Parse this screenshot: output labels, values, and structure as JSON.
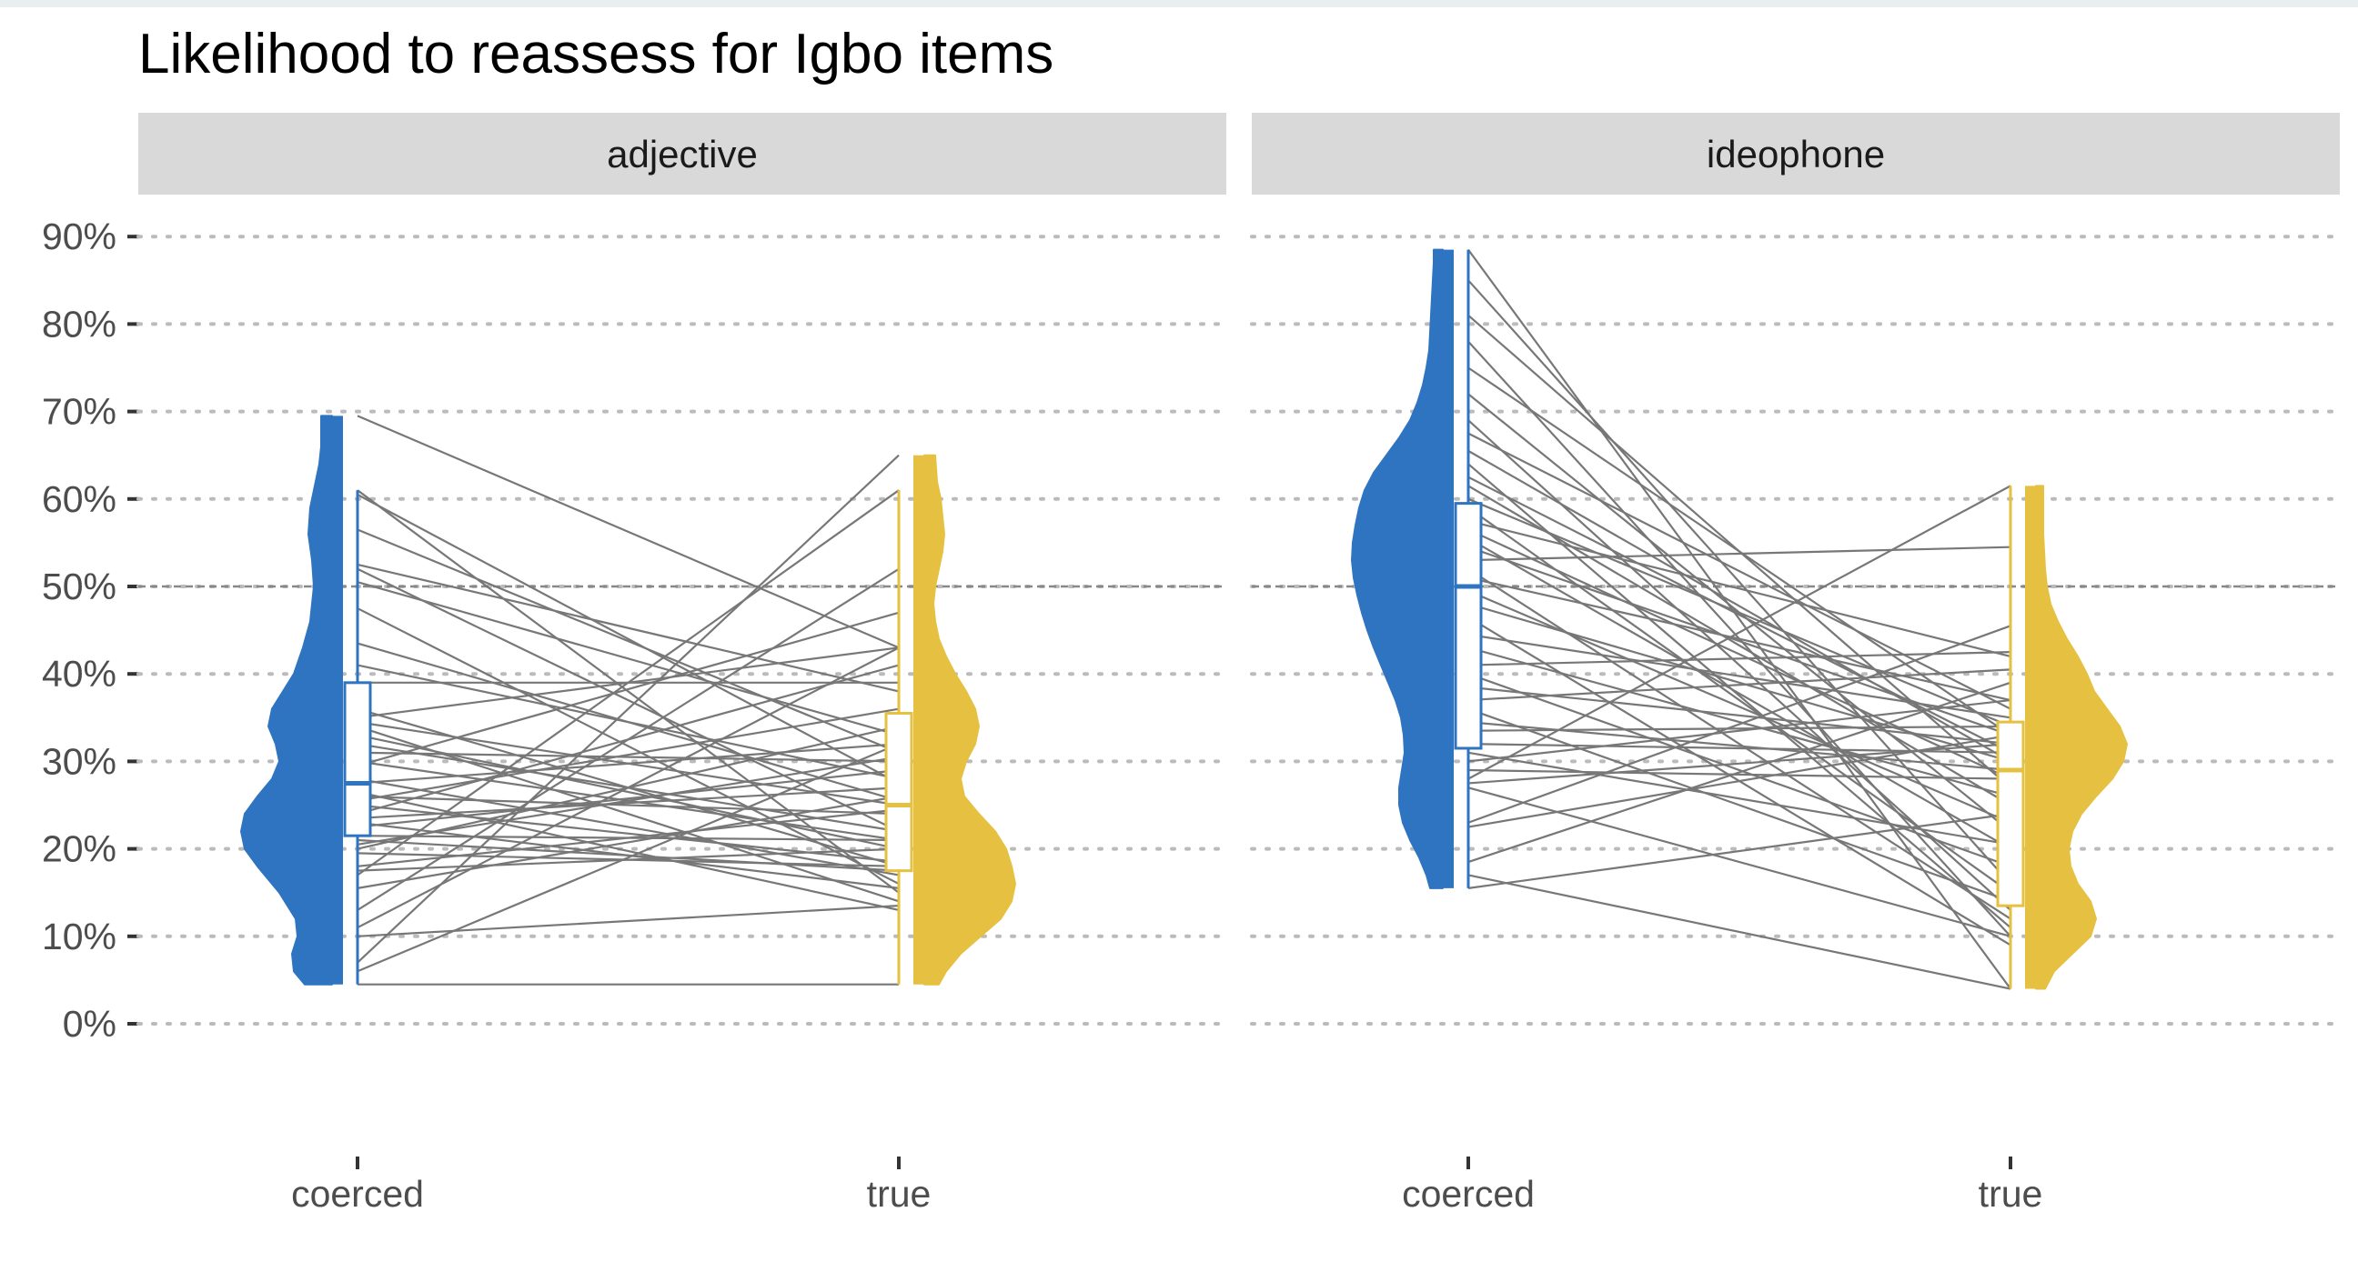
{
  "chart_data": {
    "type": "raincloud-paired",
    "title": "Likelihood to reassess for Igbo items",
    "xlabel": "",
    "ylabel": "",
    "ylim": [
      0,
      0.9
    ],
    "y_ticks": [
      0,
      0.1,
      0.2,
      0.3,
      0.4,
      0.5,
      0.6,
      0.7,
      0.8,
      0.9
    ],
    "y_tick_labels": [
      "0%",
      "10%",
      "20%",
      "30%",
      "40%",
      "50%",
      "60%",
      "70%",
      "80%",
      "90%"
    ],
    "reference_line": 0.5,
    "categories": [
      "coerced",
      "true"
    ],
    "colors": {
      "coerced": "#2e74c0",
      "true": "#e6c040",
      "pair_line": "#777777",
      "strip_bg": "#d9d9d9",
      "grid": "#bbbbbb",
      "reference": "#888888"
    },
    "facets": [
      {
        "label": "adjective",
        "boxes": {
          "coerced": {
            "min": 0.045,
            "q1": 0.215,
            "median": 0.275,
            "q3": 0.39,
            "max": 0.61
          },
          "true": {
            "min": 0.045,
            "q1": 0.175,
            "median": 0.25,
            "q3": 0.355,
            "max": 0.61
          }
        },
        "densities": {
          "coerced": {
            "y": [
              0.045,
              0.06,
              0.08,
              0.1,
              0.12,
              0.15,
              0.18,
              0.2,
              0.22,
              0.24,
              0.26,
              0.28,
              0.3,
              0.32,
              0.34,
              0.36,
              0.38,
              0.4,
              0.43,
              0.46,
              0.5,
              0.53,
              0.56,
              0.59,
              0.62,
              0.64,
              0.66,
              0.68,
              0.695
            ],
            "width": [
              0.3,
              0.42,
              0.44,
              0.38,
              0.4,
              0.58,
              0.82,
              0.96,
              1.0,
              0.96,
              0.82,
              0.66,
              0.58,
              0.62,
              0.7,
              0.66,
              0.54,
              0.42,
              0.32,
              0.24,
              0.2,
              0.22,
              0.26,
              0.24,
              0.18,
              0.14,
              0.12,
              0.12,
              0.12
            ]
          },
          "true": {
            "y": [
              0.045,
              0.06,
              0.08,
              0.1,
              0.12,
              0.14,
              0.16,
              0.18,
              0.2,
              0.22,
              0.24,
              0.26,
              0.28,
              0.3,
              0.32,
              0.34,
              0.36,
              0.38,
              0.4,
              0.42,
              0.44,
              0.46,
              0.48,
              0.5,
              0.52,
              0.54,
              0.56,
              0.58,
              0.6,
              0.62,
              0.65
            ],
            "width": [
              0.16,
              0.24,
              0.4,
              0.62,
              0.84,
              0.96,
              1.0,
              0.96,
              0.9,
              0.78,
              0.6,
              0.44,
              0.4,
              0.46,
              0.56,
              0.6,
              0.56,
              0.46,
              0.34,
              0.24,
              0.16,
              0.12,
              0.1,
              0.12,
              0.16,
              0.2,
              0.22,
              0.2,
              0.18,
              0.14,
              0.12
            ]
          }
        },
        "pairs": [
          [
            0.695,
            0.43
          ],
          [
            0.61,
            0.15
          ],
          [
            0.605,
            0.275
          ],
          [
            0.565,
            0.31
          ],
          [
            0.525,
            0.38
          ],
          [
            0.52,
            0.22
          ],
          [
            0.505,
            0.33
          ],
          [
            0.475,
            0.16
          ],
          [
            0.435,
            0.255
          ],
          [
            0.41,
            0.28
          ],
          [
            0.39,
            0.39
          ],
          [
            0.36,
            0.18
          ],
          [
            0.35,
            0.43
          ],
          [
            0.345,
            0.25
          ],
          [
            0.34,
            0.14
          ],
          [
            0.33,
            0.2
          ],
          [
            0.32,
            0.22
          ],
          [
            0.31,
            0.3
          ],
          [
            0.3,
            0.21
          ],
          [
            0.295,
            0.47
          ],
          [
            0.28,
            0.17
          ],
          [
            0.275,
            0.32
          ],
          [
            0.265,
            0.13
          ],
          [
            0.26,
            0.24
          ],
          [
            0.255,
            0.36
          ],
          [
            0.25,
            0.185
          ],
          [
            0.24,
            0.41
          ],
          [
            0.235,
            0.27
          ],
          [
            0.23,
            0.155
          ],
          [
            0.225,
            0.29
          ],
          [
            0.215,
            0.21
          ],
          [
            0.21,
            0.175
          ],
          [
            0.205,
            0.305
          ],
          [
            0.2,
            0.34
          ],
          [
            0.195,
            0.18
          ],
          [
            0.18,
            0.245
          ],
          [
            0.175,
            0.2
          ],
          [
            0.17,
            0.61
          ],
          [
            0.155,
            0.26
          ],
          [
            0.13,
            0.52
          ],
          [
            0.11,
            0.43
          ],
          [
            0.1,
            0.135
          ],
          [
            0.07,
            0.65
          ],
          [
            0.06,
            0.32
          ],
          [
            0.045,
            0.045
          ]
        ]
      },
      {
        "label": "ideophone",
        "boxes": {
          "coerced": {
            "min": 0.155,
            "q1": 0.315,
            "median": 0.5,
            "q3": 0.595,
            "max": 0.885
          },
          "true": {
            "min": 0.04,
            "q1": 0.135,
            "median": 0.29,
            "q3": 0.345,
            "max": 0.615
          }
        },
        "densities": {
          "coerced": {
            "y": [
              0.155,
              0.17,
              0.19,
              0.21,
              0.23,
              0.25,
              0.27,
              0.29,
              0.31,
              0.33,
              0.35,
              0.37,
              0.39,
              0.41,
              0.43,
              0.45,
              0.47,
              0.49,
              0.51,
              0.53,
              0.55,
              0.57,
              0.59,
              0.61,
              0.63,
              0.65,
              0.67,
              0.69,
              0.71,
              0.73,
              0.75,
              0.77,
              0.79,
              0.81,
              0.83,
              0.85,
              0.87,
              0.885
            ],
            "width": [
              0.14,
              0.18,
              0.26,
              0.36,
              0.44,
              0.48,
              0.48,
              0.45,
              0.42,
              0.43,
              0.46,
              0.52,
              0.6,
              0.68,
              0.76,
              0.83,
              0.89,
              0.94,
              0.98,
              1.0,
              0.99,
              0.96,
              0.92,
              0.86,
              0.76,
              0.62,
              0.48,
              0.36,
              0.28,
              0.22,
              0.18,
              0.15,
              0.14,
              0.13,
              0.12,
              0.11,
              0.1,
              0.1
            ]
          },
          "true": {
            "y": [
              0.04,
              0.06,
              0.08,
              0.1,
              0.12,
              0.14,
              0.16,
              0.18,
              0.2,
              0.22,
              0.24,
              0.26,
              0.28,
              0.3,
              0.32,
              0.34,
              0.36,
              0.38,
              0.4,
              0.42,
              0.44,
              0.46,
              0.48,
              0.5,
              0.52,
              0.54,
              0.56,
              0.58,
              0.6,
              0.615
            ],
            "width": [
              0.1,
              0.2,
              0.4,
              0.6,
              0.66,
              0.6,
              0.46,
              0.38,
              0.36,
              0.4,
              0.5,
              0.66,
              0.84,
              0.96,
              1.0,
              0.92,
              0.78,
              0.64,
              0.56,
              0.46,
              0.34,
              0.24,
              0.16,
              0.12,
              0.1,
              0.09,
              0.08,
              0.08,
              0.08,
              0.08
            ]
          }
        },
        "pairs": [
          [
            0.885,
            0.04
          ],
          [
            0.85,
            0.16
          ],
          [
            0.81,
            0.27
          ],
          [
            0.78,
            0.1
          ],
          [
            0.75,
            0.33
          ],
          [
            0.72,
            0.22
          ],
          [
            0.69,
            0.13
          ],
          [
            0.675,
            0.36
          ],
          [
            0.655,
            0.3
          ],
          [
            0.64,
            0.11
          ],
          [
            0.625,
            0.31
          ],
          [
            0.615,
            0.25
          ],
          [
            0.6,
            0.34
          ],
          [
            0.59,
            0.15
          ],
          [
            0.575,
            0.42
          ],
          [
            0.565,
            0.28
          ],
          [
            0.555,
            0.2
          ],
          [
            0.545,
            0.33
          ],
          [
            0.53,
            0.545
          ],
          [
            0.52,
            0.12
          ],
          [
            0.51,
            0.37
          ],
          [
            0.495,
            0.23
          ],
          [
            0.48,
            0.3
          ],
          [
            0.465,
            0.09
          ],
          [
            0.445,
            0.35
          ],
          [
            0.43,
            0.26
          ],
          [
            0.41,
            0.425
          ],
          [
            0.4,
            0.18
          ],
          [
            0.385,
            0.32
          ],
          [
            0.37,
            0.405
          ],
          [
            0.36,
            0.14
          ],
          [
            0.345,
            0.29
          ],
          [
            0.335,
            0.34
          ],
          [
            0.32,
            0.31
          ],
          [
            0.31,
            0.205
          ],
          [
            0.3,
            0.37
          ],
          [
            0.29,
            0.28
          ],
          [
            0.28,
            0.615
          ],
          [
            0.275,
            0.32
          ],
          [
            0.27,
            0.1
          ],
          [
            0.23,
            0.455
          ],
          [
            0.225,
            0.33
          ],
          [
            0.185,
            0.39
          ],
          [
            0.17,
            0.04
          ],
          [
            0.155,
            0.24
          ]
        ]
      }
    ]
  }
}
